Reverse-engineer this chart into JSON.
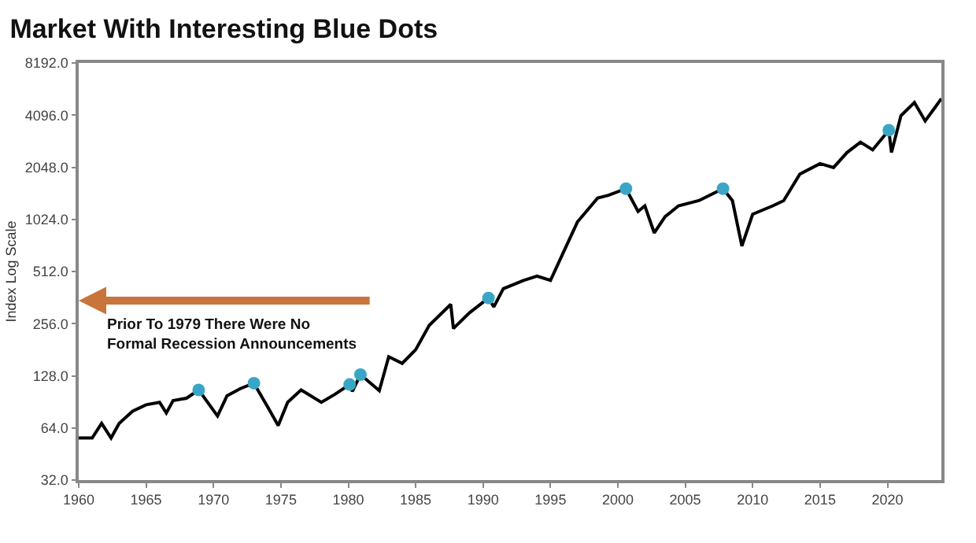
{
  "chart_data": {
    "type": "line",
    "title": "Market With Interesting Blue Dots",
    "ylabel": "Index Log Scale",
    "annotations": [
      "Prior To 1979 There Were No Formal Recession Announcements"
    ],
    "log": "y",
    "grid": false,
    "xlim": [
      1960,
      2024
    ],
    "xticks": [
      1960,
      1965,
      1970,
      1975,
      1980,
      1985,
      1990,
      1995,
      2000,
      2005,
      2010,
      2015,
      2020
    ],
    "ylim": [
      32,
      8192
    ],
    "yticks": [
      {
        "value": 32,
        "label": "32.0"
      },
      {
        "value": 64,
        "label": "64.0"
      },
      {
        "value": 128,
        "label": "128.0"
      },
      {
        "value": 256,
        "label": "256.0"
      },
      {
        "value": 512,
        "label": "512.0"
      },
      {
        "value": 1024,
        "label": "1024.0"
      },
      {
        "value": 2048,
        "label": "2048.0"
      },
      {
        "value": 4096,
        "label": "4096.0"
      },
      {
        "value": 8192,
        "label": "8192.0"
      }
    ],
    "series": [
      {
        "color": "#000000",
        "marker": "none",
        "line_style": "solid",
        "x": [
          1960,
          1961,
          1961.7,
          1962.4,
          1963,
          1964,
          1965,
          1966,
          1966.5,
          1967,
          1968,
          1968.9,
          1970.3,
          1971,
          1972,
          1973,
          1974,
          1974.8,
          1975.5,
          1976.5,
          1978,
          1979,
          1980.1,
          1980.3,
          1980.9,
          1982,
          1982.3,
          1983,
          1984,
          1985,
          1986,
          1987.6,
          1987.8,
          1989,
          1990.4,
          1990.8,
          1991.5,
          1993,
          1994,
          1995,
          1996,
          1997,
          1998.5,
          1999.3,
          2000.6,
          2001.5,
          2002,
          2002.7,
          2003.5,
          2004.5,
          2006,
          2007.8,
          2008.5,
          2009.2,
          2010,
          2011.5,
          2012.3,
          2013.5,
          2015,
          2016,
          2017,
          2018,
          2018.9,
          2020.1,
          2020.3,
          2021,
          2022,
          2022.8,
          2023.5,
          2024
        ],
        "values": [
          56,
          56,
          68,
          56,
          68,
          80,
          87,
          90,
          78,
          92,
          95,
          106,
          75,
          98,
          108,
          116,
          85,
          66,
          90,
          106,
          90,
          100,
          114,
          104,
          130,
          110,
          105,
          165,
          151,
          181,
          250,
          331,
          240,
          296,
          360,
          320,
          407,
          455,
          481,
          455,
          671,
          989,
          1360,
          1410,
          1540,
          1137,
          1226,
          855,
          1060,
          1226,
          1313,
          1540,
          1313,
          719,
          1097,
          1226,
          1313,
          1870,
          2150,
          2040,
          2490,
          2860,
          2580,
          3350,
          2490,
          4060,
          4840,
          3790,
          4500,
          5100
        ]
      },
      {
        "type": "scatter",
        "color": "#3aa6c6",
        "marker": "circle",
        "x": [
          1968.9,
          1973,
          1980.1,
          1980.9,
          1990.4,
          2000.6,
          2007.8,
          2020.1
        ],
        "values": [
          106,
          116,
          114,
          130,
          360,
          1540,
          1540,
          3350
        ]
      }
    ]
  }
}
